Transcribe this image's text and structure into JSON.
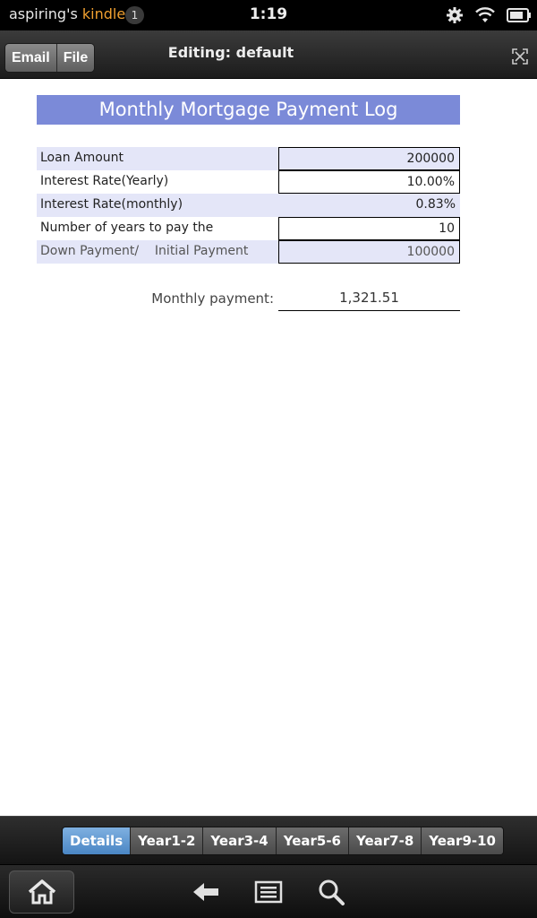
{
  "status": {
    "owner": "aspiring's",
    "brand": "kindle",
    "notifications": "1",
    "time": "1:19"
  },
  "toolbar": {
    "email_label": "Email",
    "file_label": "File",
    "title": "Editing: default"
  },
  "sheet": {
    "title": "Monthly Mortgage Payment Log",
    "rows": [
      {
        "label": "Loan Amount",
        "value": "200000"
      },
      {
        "label": "Interest Rate(Yearly)",
        "value": "10.00%"
      },
      {
        "label": "Interest Rate(monthly)",
        "value": "0.83%"
      },
      {
        "label": "Number of years to pay the mortgage",
        "value": "10"
      },
      {
        "label": "Down Payment/    Initial Payment",
        "value": "100000"
      }
    ],
    "payment_label": "Monthly payment:",
    "payment_value": "1,321.51"
  },
  "tabs": [
    "Details",
    "Year1-2",
    "Year3-4",
    "Year5-6",
    "Year7-8",
    "Year9-10"
  ],
  "active_tab": "Details",
  "colors": {
    "title_bar": "#7b8ad8",
    "row_shade": "#e4e6f8",
    "active_tab": "#4a86c4",
    "brand": "#f0a030"
  },
  "icons": [
    "gear-icon",
    "wifi-icon",
    "battery-icon",
    "expand-icon",
    "home-icon",
    "back-icon",
    "menu-icon",
    "search-icon"
  ]
}
